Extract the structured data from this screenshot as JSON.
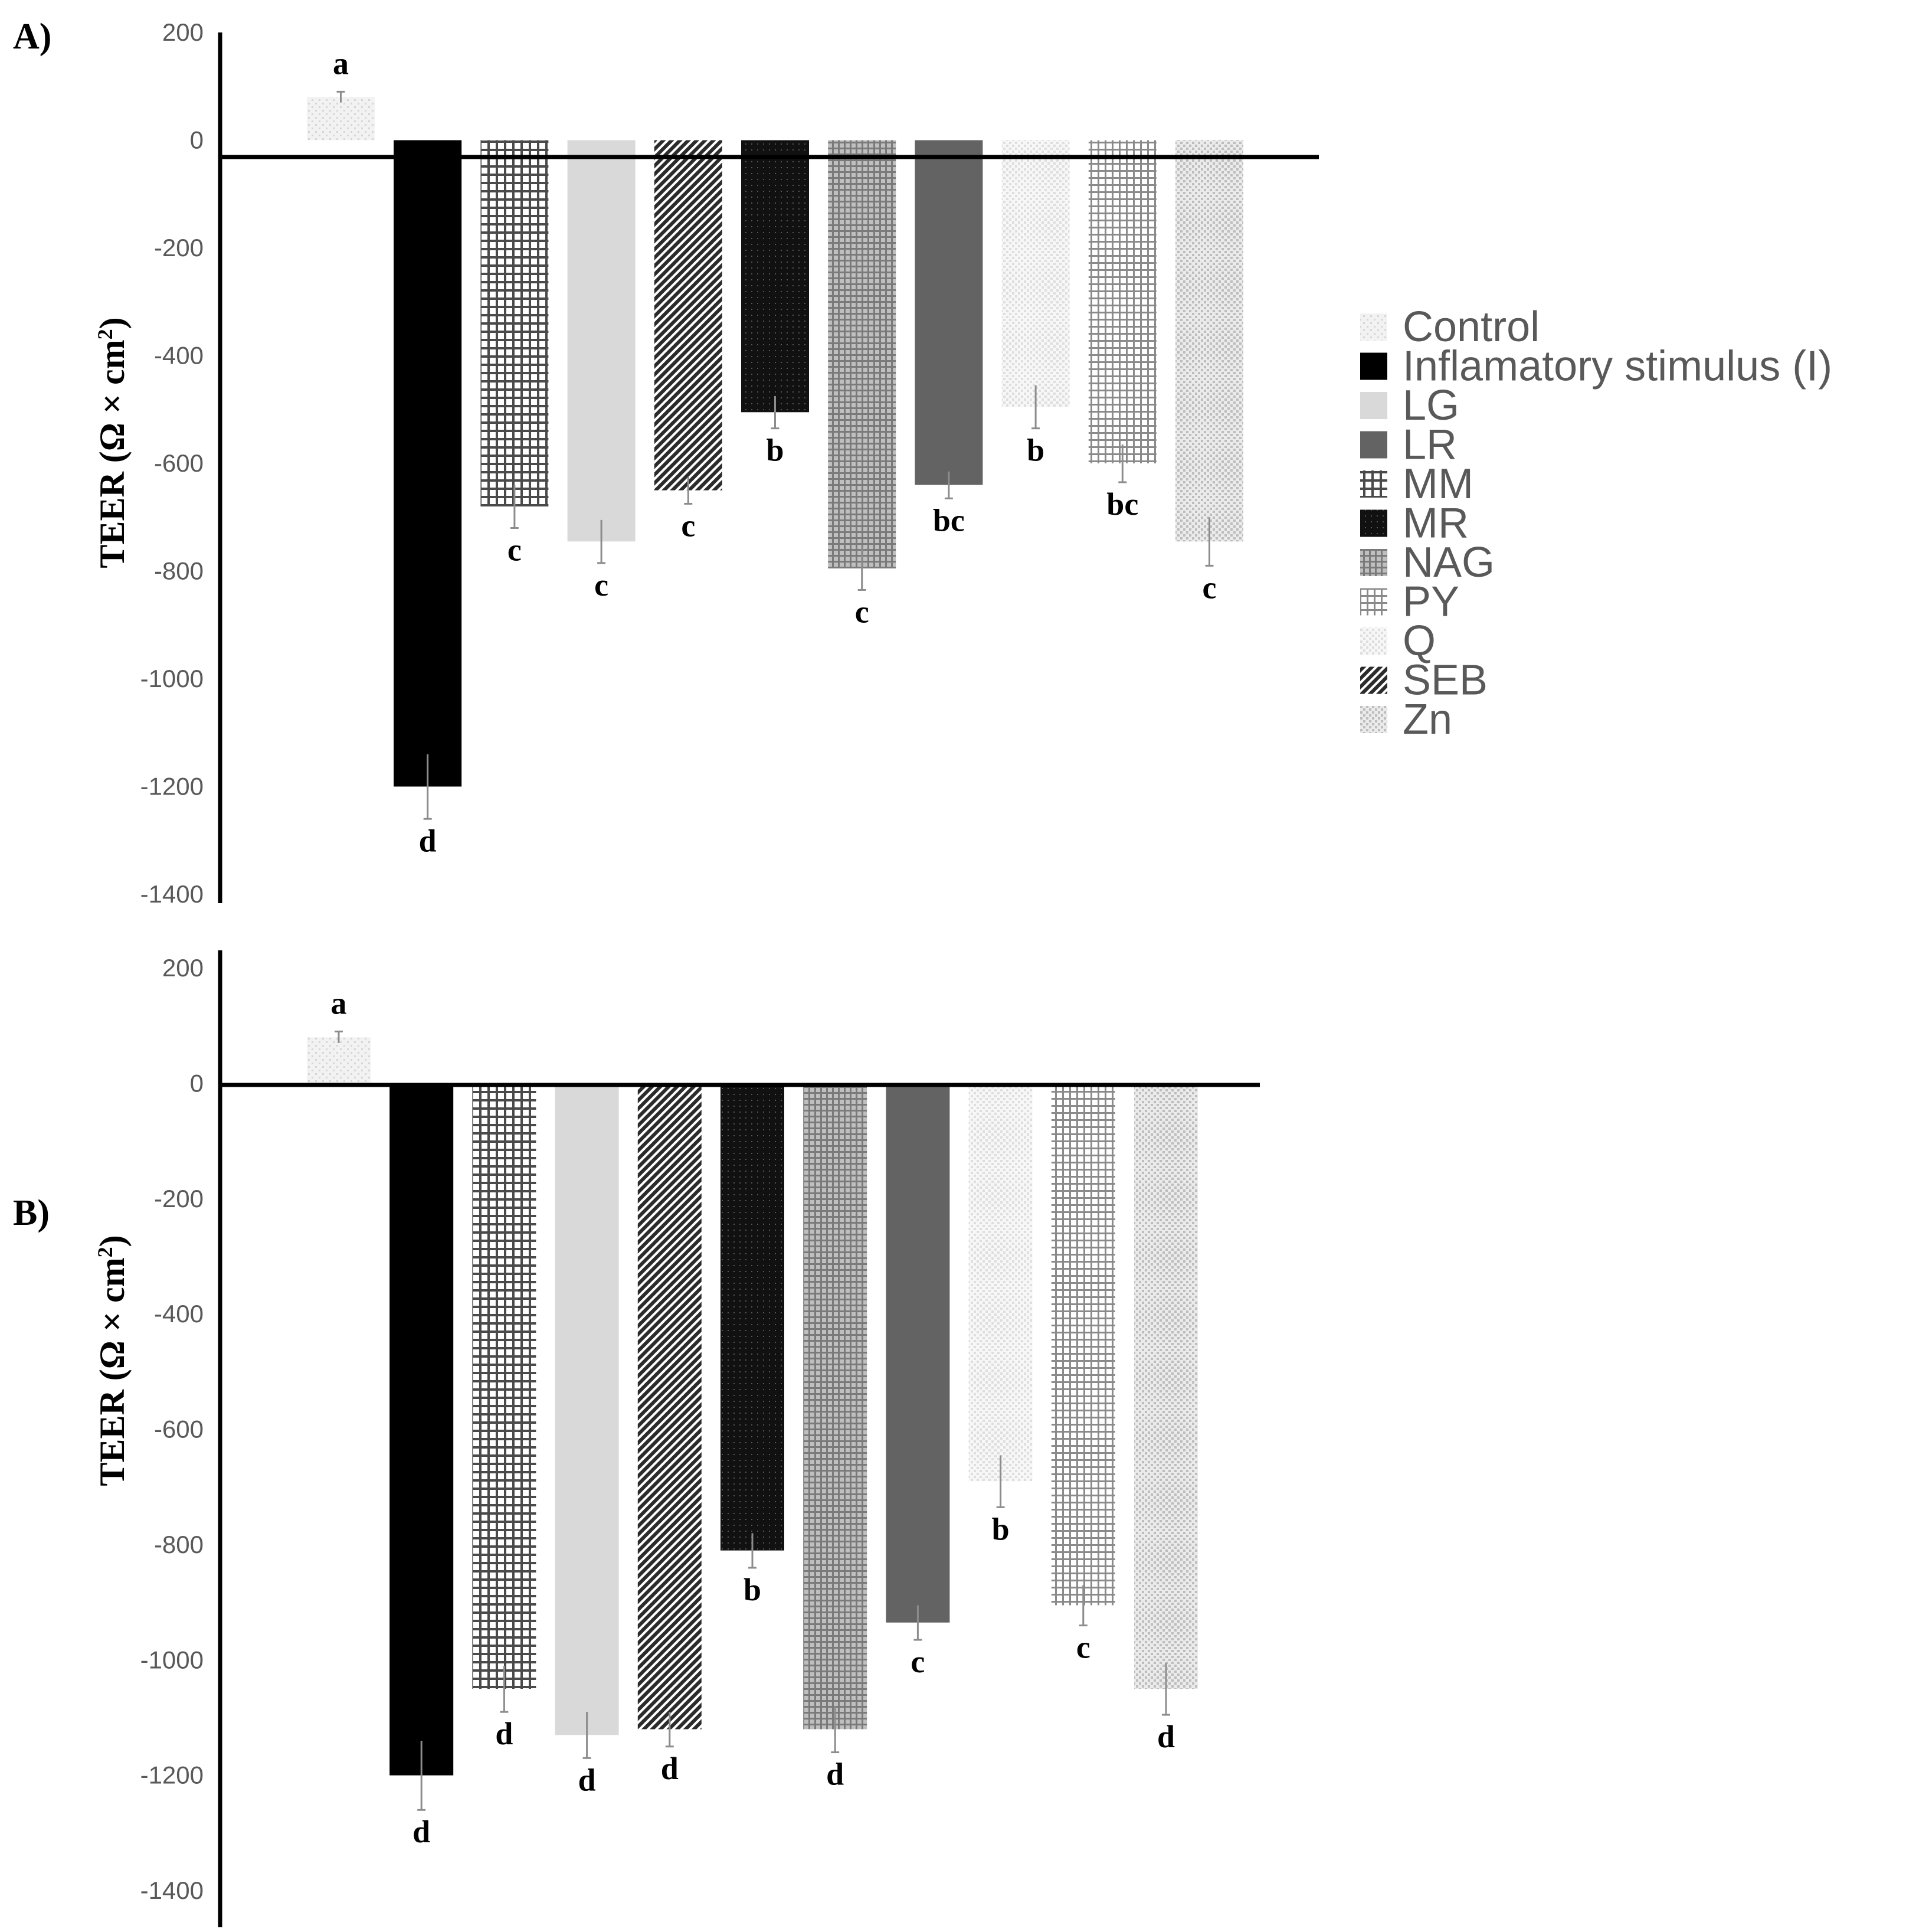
{
  "chart_data": [
    {
      "type": "bar",
      "panel_label": "A)",
      "ylabel_text": "TEER (Ω × cm",
      "ylabel_sup": "2",
      "ylabel_close": ")",
      "ylim": [
        -1400,
        200
      ],
      "yticks": [
        200,
        0,
        -200,
        -400,
        -600,
        -800,
        -1000,
        -1200,
        -1400
      ],
      "categories": [
        "Control",
        "Inflamatory stimulus  (I)",
        "MM",
        "LG",
        "SEB",
        "MR",
        "NAG",
        "LR",
        "Q",
        "PY",
        "Zn"
      ],
      "values": [
        80,
        -1200,
        -680,
        -745,
        -650,
        -505,
        -795,
        -640,
        -495,
        -600,
        -745
      ],
      "errors": [
        10,
        60,
        40,
        40,
        25,
        30,
        40,
        25,
        40,
        35,
        45
      ],
      "letters": [
        "a",
        "d",
        "c",
        "c",
        "c",
        "b",
        "c",
        "bc",
        "b",
        "bc",
        "c"
      ]
    },
    {
      "type": "bar",
      "panel_label": "B)",
      "ylabel_text": "TEER (Ω × cm",
      "ylabel_sup": "2",
      "ylabel_close": ")",
      "ylim": [
        -1400,
        200
      ],
      "yticks": [
        200,
        0,
        -200,
        -400,
        -600,
        -800,
        -1000,
        -1200,
        -1400
      ],
      "categories": [
        "Control",
        "Inflamatory stimulus  (I)",
        "MM",
        "LG",
        "SEB",
        "MR",
        "NAG",
        "LR",
        "Q",
        "PY",
        "Zn"
      ],
      "values": [
        80,
        -1200,
        -1050,
        -1130,
        -1120,
        -810,
        -1120,
        -935,
        -690,
        -905,
        -1050
      ],
      "errors": [
        10,
        60,
        40,
        40,
        30,
        30,
        40,
        30,
        45,
        35,
        45
      ],
      "letters": [
        "a",
        "d",
        "d",
        "d",
        "d",
        "b",
        "d",
        "c",
        "b",
        "c",
        "d"
      ]
    }
  ],
  "legend": {
    "items": [
      {
        "label": "Control",
        "pattern": "pat-control"
      },
      {
        "label": "Inflamatory stimulus  (I)",
        "pattern": "pat-solid-black"
      },
      {
        "label": "LG",
        "pattern": "pat-lg"
      },
      {
        "label": "LR",
        "pattern": "pat-lr"
      },
      {
        "label": "MM",
        "pattern": "pat-mm"
      },
      {
        "label": "MR",
        "pattern": "pat-mr"
      },
      {
        "label": "NAG",
        "pattern": "pat-nag"
      },
      {
        "label": "PY",
        "pattern": "pat-py"
      },
      {
        "label": "Q",
        "pattern": "pat-q"
      },
      {
        "label": "SEB",
        "pattern": "pat-seb"
      },
      {
        "label": "Zn",
        "pattern": "pat-zn"
      }
    ]
  },
  "bar_patterns": [
    "pat-control",
    "pat-solid-black",
    "pat-mm",
    "pat-lg",
    "pat-seb",
    "pat-mr",
    "pat-nag",
    "pat-lr",
    "pat-q",
    "pat-py",
    "pat-zn"
  ],
  "colors": {
    "axis": "#000000",
    "tick_text": "#595959",
    "error_bar": "#8c8c8c"
  }
}
